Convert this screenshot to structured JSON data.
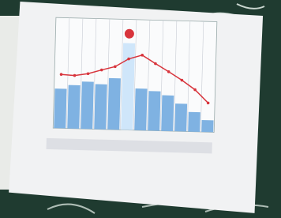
{
  "chart_data": {
    "type": "bar",
    "categories": [
      null,
      null,
      null,
      null,
      null,
      null,
      null,
      null,
      null,
      null,
      null,
      null
    ],
    "series": [
      {
        "type": "bar",
        "color": "#7fb2e2",
        "values": [
          143,
          157,
          171,
          163,
          186,
          314,
          151,
          143,
          129,
          100,
          71,
          43
        ]
      },
      {
        "type": "line",
        "axis": "y2",
        "color": "#d8343c",
        "values": [
          14.6,
          14.4,
          15,
          16.1,
          17.1,
          19.3,
          20.4,
          18.2,
          16.1,
          13.9,
          11.4,
          7.9
        ]
      }
    ],
    "highlight_color": "#cfe6fa",
    "highlight_index": 5,
    "ylim": [
      0,
      400
    ],
    "y2lim": [
      0,
      30
    ],
    "grid": true
  }
}
